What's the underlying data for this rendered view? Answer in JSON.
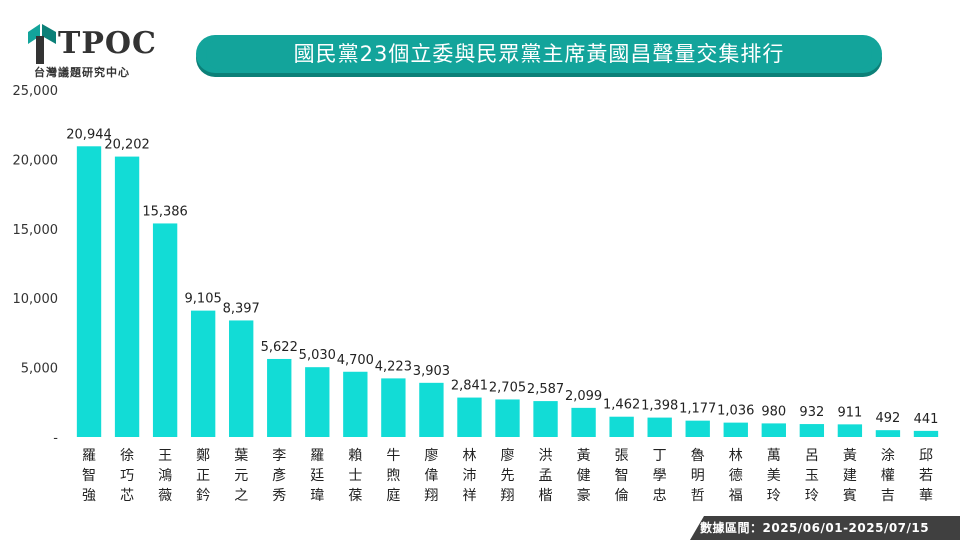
{
  "brand": {
    "logo_text": "TPOC",
    "subtitle": "台灣議題研究中心",
    "accent": "#13a49b"
  },
  "title": "國民黨23個立委與民眾黨主席黃國昌聲量交集排行",
  "footer": "數據區間：2025/06/01-2025/07/15",
  "chart_data": {
    "type": "bar",
    "title": "國民黨23個立委與民眾黨主席黃國昌聲量交集排行",
    "categories": [
      "羅智強",
      "徐巧芯",
      "王鴻薇",
      "鄭正鈐",
      "葉元之",
      "李彥秀",
      "羅廷瑋",
      "賴士葆",
      "牛煦庭",
      "廖偉翔",
      "林沛祥",
      "廖先翔",
      "洪孟楷",
      "黃健豪",
      "張智倫",
      "丁學忠",
      "魯明哲",
      "林德福",
      "萬美玲",
      "呂玉玲",
      "黃建賓",
      "涂權吉",
      "邱若華"
    ],
    "values": [
      20944,
      20202,
      15386,
      9105,
      8397,
      5622,
      5030,
      4700,
      4223,
      3903,
      2841,
      2705,
      2587,
      2099,
      1462,
      1398,
      1177,
      1036,
      980,
      932,
      911,
      492,
      441
    ],
    "value_labels": [
      "20,944",
      "20,202",
      "15,386",
      "9,105",
      "8,397",
      "5,622",
      "5,030",
      "4,700",
      "4,223",
      "3,903",
      "2,841",
      "2,705",
      "2,587",
      "2,099",
      "1,462",
      "1,398",
      "1,177",
      "1,036",
      "980",
      "932",
      "911",
      "492",
      "441"
    ],
    "yticks": [
      0,
      5000,
      10000,
      15000,
      20000,
      25000
    ],
    "ytick_labels": [
      "-",
      "5,000",
      "10,000",
      "15,000",
      "20,000",
      "25,000"
    ],
    "ylim": [
      0,
      25000
    ],
    "xlabel": "",
    "ylabel": "",
    "bar_color": "#12dcd6",
    "grid": false
  }
}
